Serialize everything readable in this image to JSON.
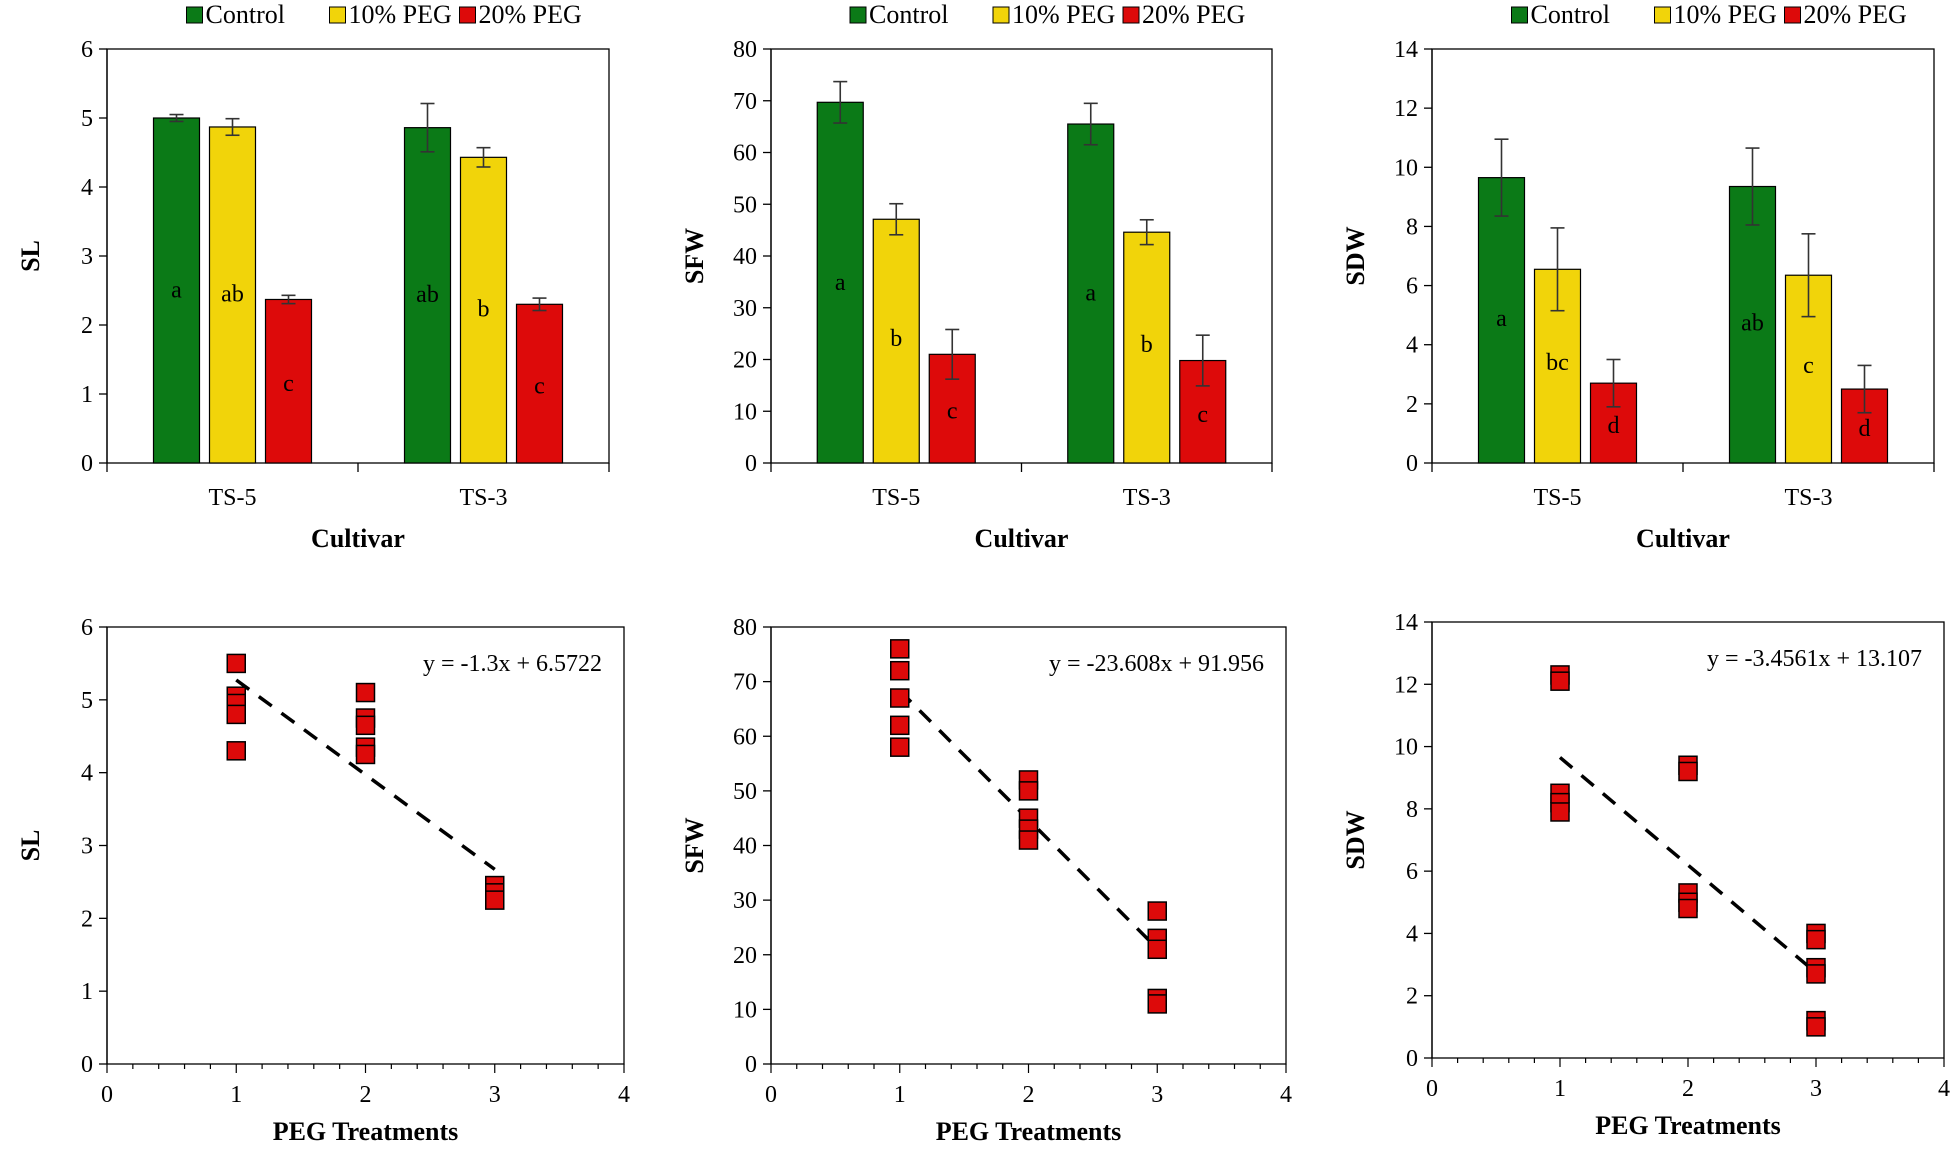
{
  "colors": {
    "Control": "#0b7a17",
    "10% PEG": "#f1d40a",
    "20% PEG": "#dd0a0a",
    "marker": "#dd0a0a"
  },
  "chart_data": [
    {
      "type": "bar",
      "ylabel": "SL",
      "xlabel": "Cultivar",
      "ylim": [
        0,
        6
      ],
      "yticks": [
        0,
        1,
        2,
        3,
        4,
        5,
        6
      ],
      "categories": [
        "TS-5",
        "TS-3"
      ],
      "legend": [
        "Control",
        "10% PEG",
        "20% PEG"
      ],
      "series": [
        {
          "name": "Control",
          "values": [
            5.0,
            4.86
          ],
          "errors": [
            0.05,
            0.35
          ],
          "letters": [
            "a",
            "ab"
          ]
        },
        {
          "name": "10% PEG",
          "values": [
            4.87,
            4.43
          ],
          "errors": [
            0.12,
            0.14
          ],
          "letters": [
            "ab",
            "b"
          ]
        },
        {
          "name": "20% PEG",
          "values": [
            2.37,
            2.3
          ],
          "errors": [
            0.06,
            0.09
          ],
          "letters": [
            "c",
            "c"
          ]
        }
      ]
    },
    {
      "type": "bar",
      "ylabel": "SFW",
      "xlabel": "Cultivar",
      "ylim": [
        0,
        80
      ],
      "yticks": [
        0,
        10,
        20,
        30,
        40,
        50,
        60,
        70,
        80
      ],
      "categories": [
        "TS-5",
        "TS-3"
      ],
      "legend": [
        "Control",
        "10% PEG",
        "20% PEG"
      ],
      "series": [
        {
          "name": "Control",
          "values": [
            69.7,
            65.5
          ],
          "errors": [
            4.0,
            4.0
          ],
          "letters": [
            "a",
            "a"
          ]
        },
        {
          "name": "10% PEG",
          "values": [
            47.1,
            44.6
          ],
          "errors": [
            3.0,
            2.4
          ],
          "letters": [
            "b",
            "b"
          ]
        },
        {
          "name": "20% PEG",
          "values": [
            21.0,
            19.8
          ],
          "errors": [
            4.8,
            4.9
          ],
          "letters": [
            "c",
            "c"
          ]
        }
      ]
    },
    {
      "type": "bar",
      "ylabel": "SDW",
      "xlabel": "Cultivar",
      "ylim": [
        0,
        14
      ],
      "yticks": [
        0,
        2,
        4,
        6,
        8,
        10,
        12,
        14
      ],
      "categories": [
        "TS-5",
        "TS-3"
      ],
      "legend": [
        "Control",
        "10% PEG",
        "20% PEG"
      ],
      "series": [
        {
          "name": "Control",
          "values": [
            9.65,
            9.35
          ],
          "errors": [
            1.3,
            1.3
          ],
          "letters": [
            "a",
            "ab"
          ]
        },
        {
          "name": "10% PEG",
          "values": [
            6.55,
            6.35
          ],
          "errors": [
            1.4,
            1.4
          ],
          "letters": [
            "bc",
            "c"
          ]
        },
        {
          "name": "20% PEG",
          "values": [
            2.7,
            2.5
          ],
          "errors": [
            0.8,
            0.8
          ],
          "letters": [
            "d",
            "d"
          ]
        }
      ]
    },
    {
      "type": "scatter",
      "ylabel": "SL",
      "xlabel": "PEG Treatments",
      "xlim": [
        0,
        4
      ],
      "xticks": [
        0,
        1,
        2,
        3,
        4
      ],
      "ylim": [
        0,
        6
      ],
      "yticks": [
        0,
        1,
        2,
        3,
        4,
        5,
        6
      ],
      "points": [
        [
          1,
          5.5
        ],
        [
          1,
          5.05
        ],
        [
          1,
          4.95
        ],
        [
          1,
          4.8
        ],
        [
          1,
          4.3
        ],
        [
          2,
          5.1
        ],
        [
          2,
          4.75
        ],
        [
          2,
          4.65
        ],
        [
          2,
          4.35
        ],
        [
          2,
          4.25
        ],
        [
          3,
          2.45
        ],
        [
          3,
          2.35
        ],
        [
          3,
          2.25
        ]
      ],
      "trendline": {
        "slope": -1.3,
        "intercept": 6.5722,
        "x_range": [
          1,
          3
        ]
      },
      "equation": "y = -1.3x + 6.5722"
    },
    {
      "type": "scatter",
      "ylabel": "SFW",
      "xlabel": "PEG Treatments",
      "xlim": [
        0,
        4
      ],
      "xticks": [
        0,
        1,
        2,
        3,
        4
      ],
      "ylim": [
        0,
        80
      ],
      "yticks": [
        0,
        10,
        20,
        30,
        40,
        50,
        60,
        70,
        80
      ],
      "points": [
        [
          1,
          76
        ],
        [
          1,
          72
        ],
        [
          1,
          67
        ],
        [
          1,
          62
        ],
        [
          1,
          58
        ],
        [
          2,
          52
        ],
        [
          2,
          50
        ],
        [
          2,
          45
        ],
        [
          2,
          43
        ],
        [
          2,
          41
        ],
        [
          3,
          28
        ],
        [
          3,
          23
        ],
        [
          3,
          21
        ],
        [
          3,
          12
        ],
        [
          3,
          11
        ]
      ],
      "trendline": {
        "slope": -23.608,
        "intercept": 91.956,
        "x_range": [
          1,
          3
        ]
      },
      "equation": "y = -23.608x + 91.956"
    },
    {
      "type": "scatter",
      "ylabel": "SDW",
      "xlabel": "PEG Treatments",
      "xlim": [
        0,
        4
      ],
      "xticks": [
        0,
        1,
        2,
        3,
        4
      ],
      "ylim": [
        0,
        14
      ],
      "yticks": [
        0,
        2,
        4,
        6,
        8,
        10,
        12,
        14
      ],
      "points": [
        [
          1,
          12.3
        ],
        [
          1,
          12.1
        ],
        [
          1,
          8.5
        ],
        [
          1,
          8.2
        ],
        [
          1,
          7.9
        ],
        [
          2,
          9.4
        ],
        [
          2,
          9.2
        ],
        [
          2,
          5.3
        ],
        [
          2,
          5.0
        ],
        [
          2,
          4.8
        ],
        [
          3,
          4.0
        ],
        [
          3,
          3.8
        ],
        [
          3,
          2.9
        ],
        [
          3,
          2.7
        ],
        [
          3,
          1.2
        ],
        [
          3,
          1.0
        ]
      ],
      "trendline": {
        "slope": -3.4561,
        "intercept": 13.107,
        "x_range": [
          1,
          3
        ]
      },
      "equation": "y = -3.4561x + 13.107"
    }
  ]
}
